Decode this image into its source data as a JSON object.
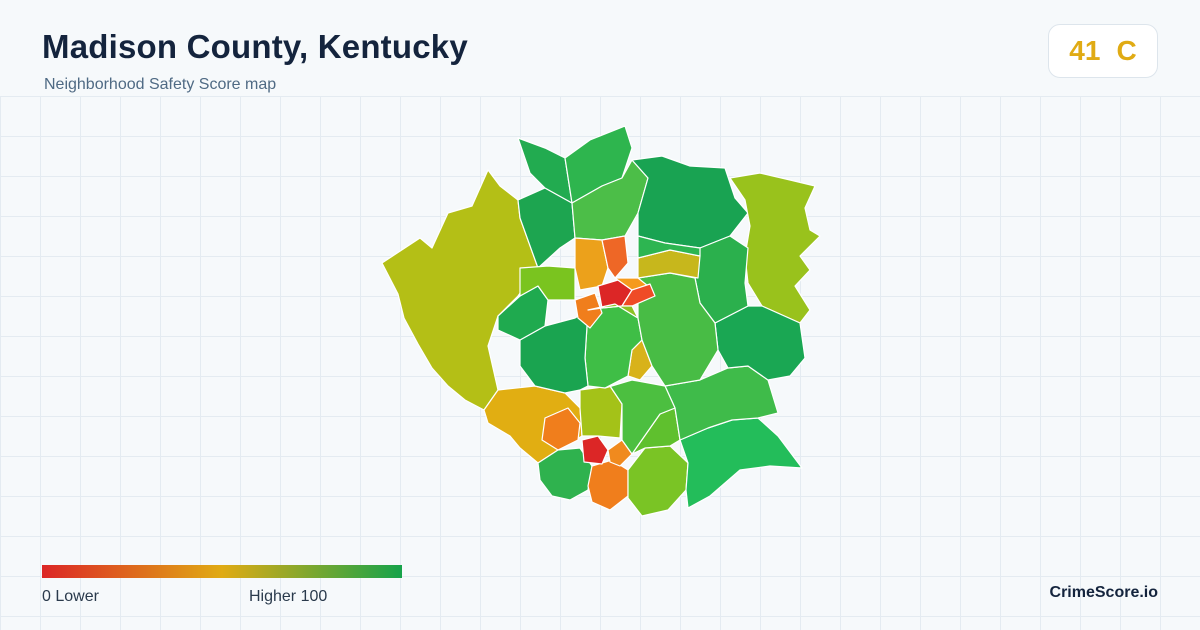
{
  "header": {
    "title": "Madison County, Kentucky",
    "subtitle": "Neighborhood Safety Score map"
  },
  "score": {
    "value": "41",
    "grade": "C",
    "color": "#e0ab14"
  },
  "legend": {
    "min_label": "0  Lower",
    "max_label": "Higher  100",
    "min_value": 0,
    "max_value": 100,
    "low_color": "#dc2626",
    "mid_color": "#e0ab14",
    "high_color": "#16a34a"
  },
  "branding": {
    "name": "CrimeScore.io"
  }
}
